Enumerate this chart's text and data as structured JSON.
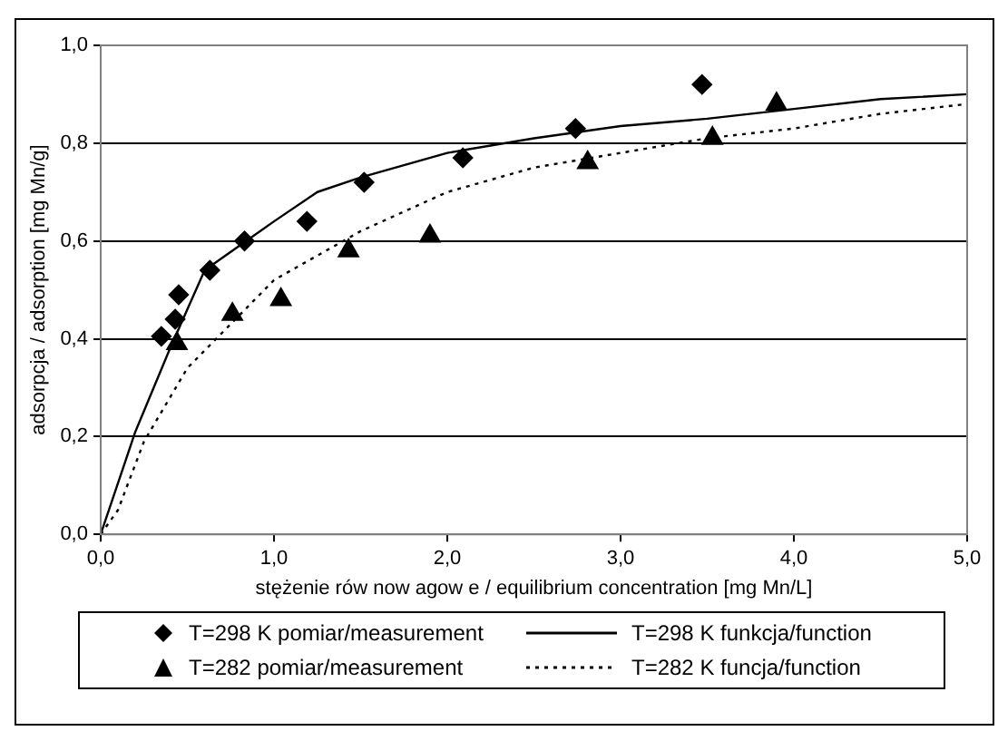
{
  "chart_data": {
    "type": "scatter",
    "xlabel": "stężenie rów now agow e / equilibrium concentration [mg Mn/L]",
    "ylabel": "adsorpcja / adsorption [mg Mn/g]",
    "xlim": [
      0,
      5
    ],
    "xticks": [
      {
        "value": 0,
        "label": "0,0"
      },
      {
        "value": 1,
        "label": "1,0"
      },
      {
        "value": 2,
        "label": "2,0"
      },
      {
        "value": 3,
        "label": "3,0"
      },
      {
        "value": 4,
        "label": "4,0"
      },
      {
        "value": 5,
        "label": "5,0"
      }
    ],
    "ylim": [
      0,
      1
    ],
    "yticks": [
      {
        "value": 0,
        "label": "0,0"
      },
      {
        "value": 0.2,
        "label": "0,2"
      },
      {
        "value": 0.4,
        "label": "0,4"
      },
      {
        "value": 0.6,
        "label": "0,6"
      },
      {
        "value": 0.8,
        "label": "0,8"
      },
      {
        "value": 1,
        "label": "1,0"
      }
    ],
    "grid": "y",
    "legend": "bottom",
    "series": [
      {
        "name": "T=298 K pomiar/measurement",
        "type": "scatter",
        "marker": "diamond",
        "color": "#000000",
        "x": [
          0.35,
          0.43,
          0.45,
          0.63,
          0.83,
          1.19,
          1.52,
          2.09,
          2.74,
          3.47
        ],
        "values": [
          0.405,
          0.44,
          0.49,
          0.54,
          0.6,
          0.64,
          0.72,
          0.77,
          0.83,
          0.92
        ]
      },
      {
        "name": "T=298 K funkcja/function",
        "type": "line",
        "marker": "none",
        "line_style": "solid",
        "color": "#000000",
        "x": [
          0,
          0.2,
          0.4,
          0.6,
          0.8,
          1.0,
          1.25,
          1.5,
          2.0,
          2.5,
          3.0,
          3.5,
          4.0,
          4.5,
          5.0
        ],
        "values": [
          0,
          0.21,
          0.38,
          0.54,
          0.59,
          0.64,
          0.7,
          0.73,
          0.78,
          0.81,
          0.835,
          0.85,
          0.87,
          0.89,
          0.9
        ]
      },
      {
        "name": "T=282 pomiar/measurement",
        "type": "scatter",
        "marker": "triangle",
        "color": "#000000",
        "x": [
          0.44,
          0.76,
          1.04,
          1.43,
          1.9,
          2.81,
          3.53,
          3.9
        ],
        "values": [
          0.39,
          0.45,
          0.48,
          0.58,
          0.61,
          0.76,
          0.81,
          0.88
        ]
      },
      {
        "name": "T=282 K funcja/function",
        "type": "line",
        "marker": "none",
        "line_style": "dotted",
        "color": "#000000",
        "x": [
          0,
          0.1,
          0.25,
          0.5,
          0.75,
          1.0,
          1.5,
          2.0,
          2.5,
          3.0,
          3.5,
          4.0,
          4.5,
          5.0
        ],
        "values": [
          0,
          0.05,
          0.19,
          0.34,
          0.43,
          0.52,
          0.62,
          0.7,
          0.75,
          0.78,
          0.81,
          0.83,
          0.86,
          0.88
        ]
      }
    ]
  }
}
